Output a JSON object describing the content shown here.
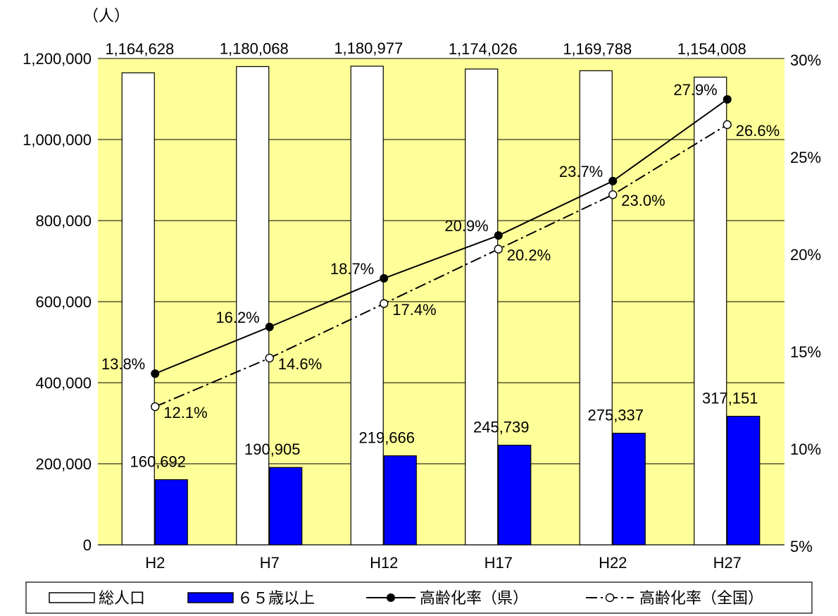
{
  "chart_data": {
    "type": "bar",
    "unit_label": "（人）",
    "categories": [
      "H2",
      "H7",
      "H12",
      "H17",
      "H22",
      "H27"
    ],
    "bars": [
      {
        "name": "総人口",
        "values": [
          1164628,
          1180068,
          1180977,
          1174026,
          1169788,
          1154008
        ],
        "labels": [
          "1,164,628",
          "1,180,068",
          "1,180,977",
          "1,174,026",
          "1,169,788",
          "1,154,008"
        ],
        "fill": "#ffffff"
      },
      {
        "name": "６５歳以上",
        "values": [
          160692,
          190905,
          219666,
          245739,
          275337,
          317151
        ],
        "labels": [
          "160,692",
          "190,905",
          "219,666",
          "245,739",
          "275,337",
          "317,151"
        ],
        "fill": "#0000ff"
      }
    ],
    "lines": [
      {
        "name": "高齢化率（県）",
        "values": [
          13.8,
          16.2,
          18.7,
          20.9,
          23.7,
          27.9
        ],
        "labels": [
          "13.8%",
          "16.2%",
          "18.7%",
          "20.9%",
          "23.7%",
          "27.9%"
        ],
        "style": "solid",
        "marker": "filled-circle"
      },
      {
        "name": "高齢化率（全国）",
        "values": [
          12.1,
          14.6,
          17.4,
          20.2,
          23.0,
          26.6
        ],
        "labels": [
          "12.1%",
          "14.6%",
          "17.4%",
          "20.2%",
          "23.0%",
          "26.6%"
        ],
        "style": "dash-dot",
        "marker": "open-circle"
      }
    ],
    "y_left": {
      "range": [
        0,
        1200000
      ],
      "ticks": [
        0,
        200000,
        400000,
        600000,
        800000,
        1000000,
        1200000
      ],
      "tick_labels": [
        "0",
        "200,000",
        "400,000",
        "600,000",
        "800,000",
        "1,000,000",
        "1,200,000"
      ]
    },
    "y_right": {
      "range": [
        5,
        30
      ],
      "ticks": [
        5,
        10,
        15,
        20,
        25,
        30
      ],
      "tick_labels": [
        "5%",
        "10%",
        "15%",
        "20%",
        "25%",
        "30%"
      ]
    },
    "grid": true,
    "legend_position": "bottom",
    "colors": {
      "plot_background": "#ffff99",
      "blue_bar": "#0000ff"
    }
  }
}
